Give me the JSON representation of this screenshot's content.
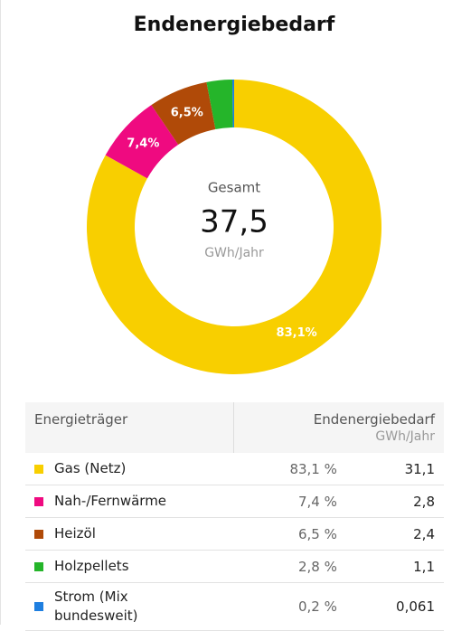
{
  "chart_data": {
    "type": "donut",
    "title": "Endenergiebedarf",
    "center_label": "Gesamt",
    "total": "37,5",
    "unit": "GWh/Jahr",
    "categories": [
      "Gas (Netz)",
      "Nah-/Fernwärme",
      "Heizöl",
      "Holzpellets",
      "Strom (Mix bundesweit)"
    ],
    "values": [
      83.1,
      7.4,
      6.5,
      2.8,
      0.2
    ],
    "value_labels": [
      "83,1%",
      "7,4%",
      "6,5%",
      null,
      null
    ],
    "colors": [
      "#f8cf00",
      "#ef0a80",
      "#b04a08",
      "#25b52a",
      "#1f7fe0"
    ]
  },
  "table": {
    "header": [
      "Energieträger",
      "Endenergiebedarf",
      "GWh/Jahr"
    ],
    "shares": [
      "83,1 %",
      "7,4 %",
      "6,5 %",
      "2,8 %",
      "0,2 %"
    ],
    "energy": [
      "31,1",
      "2,8",
      "2,4",
      "1,1",
      "0,061"
    ]
  }
}
